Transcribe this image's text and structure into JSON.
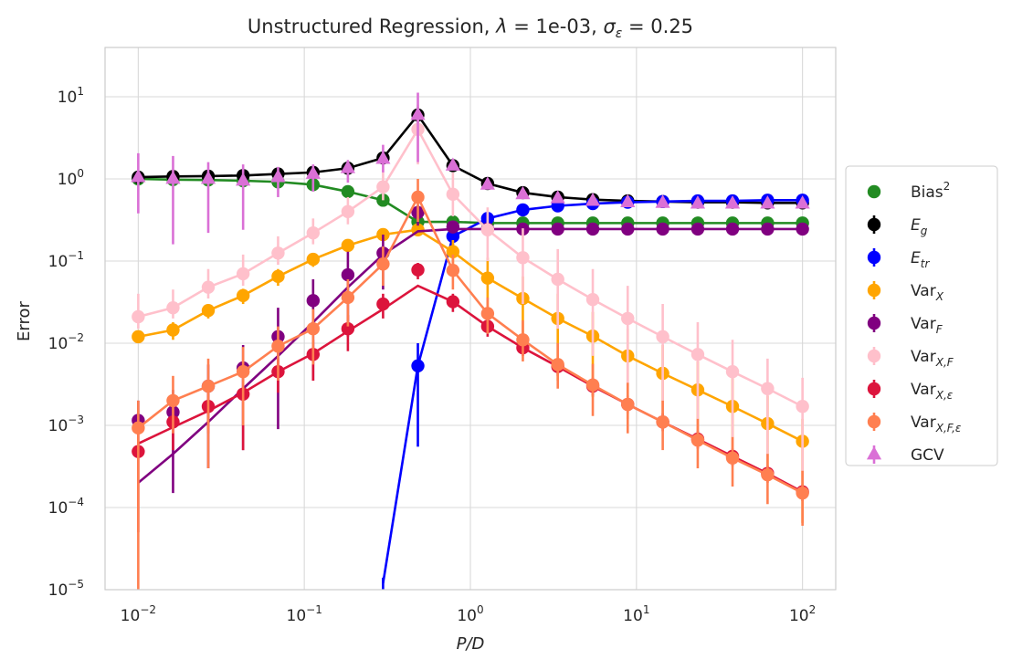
{
  "chart_data": {
    "type": "scatter",
    "title": "Unstructured Regression, λ = 1e-03, σ_ε = 0.25",
    "title_parts": {
      "prefix": "Unstructured Regression, ",
      "lambda_sym": "λ",
      "lambda_val": " = 1e-03, ",
      "sigma_sym": "σ",
      "sigma_sub": "ε",
      "sigma_val": " = 0.25"
    },
    "xlabel": "P/D",
    "ylabel": "Error",
    "xscale": "log",
    "yscale": "log",
    "xlim": [
      0.00631,
      158.5
    ],
    "ylim": [
      1e-05,
      39.8
    ],
    "grid": true,
    "legend_position": "right-outside",
    "x_ticks": [
      {
        "base": "10",
        "exp": "−2"
      },
      {
        "base": "10",
        "exp": "−1"
      },
      {
        "base": "10",
        "exp": "0"
      },
      {
        "base": "10",
        "exp": "1"
      },
      {
        "base": "10",
        "exp": "2"
      }
    ],
    "y_ticks": [
      {
        "base": "10",
        "exp": "−5"
      },
      {
        "base": "10",
        "exp": "−4"
      },
      {
        "base": "10",
        "exp": "−3"
      },
      {
        "base": "10",
        "exp": "−2"
      },
      {
        "base": "10",
        "exp": "−1"
      },
      {
        "base": "10",
        "exp": "0"
      },
      {
        "base": "10",
        "exp": "1"
      }
    ],
    "x": [
      0.01,
      0.0162,
      0.0264,
      0.0428,
      0.0695,
      0.113,
      0.183,
      0.298,
      0.483,
      0.785,
      1.27,
      2.07,
      3.36,
      5.46,
      8.86,
      14.4,
      23.4,
      37.9,
      61.6,
      100
    ],
    "series": [
      {
        "name": "Bias",
        "name_sup": "2",
        "name_sub": "",
        "color": "#228b22",
        "marker": "circle",
        "errorbar": false,
        "points": [
          1.0,
          0.98,
          0.97,
          0.95,
          0.92,
          0.85,
          0.7,
          0.55,
          0.3,
          0.3,
          0.29,
          0.29,
          0.29,
          0.29,
          0.29,
          0.29,
          0.29,
          0.29,
          0.29,
          0.29
        ],
        "curve": [
          1.0,
          0.98,
          0.97,
          0.95,
          0.92,
          0.85,
          0.7,
          0.55,
          0.3,
          0.3,
          0.29,
          0.29,
          0.29,
          0.29,
          0.29,
          0.29,
          0.29,
          0.29,
          0.29,
          0.29
        ],
        "err_lo": null,
        "err_hi": null
      },
      {
        "name": "E",
        "name_sup": "",
        "name_sub": "g",
        "color": "#000000",
        "marker": "circle",
        "errorbar": true,
        "points": [
          1.05,
          1.07,
          1.08,
          1.1,
          1.15,
          1.2,
          1.35,
          1.8,
          6.0,
          1.45,
          0.88,
          0.68,
          0.6,
          0.56,
          0.54,
          0.53,
          0.52,
          0.52,
          0.51,
          0.51
        ],
        "curve": [
          1.05,
          1.07,
          1.08,
          1.1,
          1.15,
          1.2,
          1.35,
          1.8,
          6.0,
          1.45,
          0.88,
          0.68,
          0.6,
          0.56,
          0.54,
          0.53,
          0.52,
          0.52,
          0.51,
          0.51
        ],
        "err_lo": [
          0.9,
          0.92,
          0.93,
          0.95,
          1.0,
          1.05,
          1.18,
          1.5,
          4.8,
          1.3,
          0.8,
          0.62,
          0.55,
          0.52,
          0.5,
          0.49,
          0.48,
          0.48,
          0.47,
          0.47
        ],
        "err_hi": [
          1.2,
          1.22,
          1.23,
          1.25,
          1.3,
          1.35,
          1.55,
          2.1,
          7.5,
          1.6,
          0.96,
          0.74,
          0.65,
          0.6,
          0.58,
          0.57,
          0.56,
          0.56,
          0.55,
          0.55
        ]
      },
      {
        "name": "E",
        "name_sup": "",
        "name_sub": "tr",
        "color": "#0000ff",
        "marker": "circle",
        "errorbar": true,
        "points": [
          null,
          null,
          null,
          null,
          null,
          null,
          null,
          null,
          0.0053,
          0.2,
          0.33,
          0.42,
          0.47,
          0.5,
          0.52,
          0.53,
          0.54,
          0.54,
          0.55,
          0.55
        ],
        "curve": [
          null,
          null,
          null,
          null,
          null,
          null,
          null,
          1.2e-05,
          0.0053,
          0.2,
          0.33,
          0.42,
          0.47,
          0.5,
          0.52,
          0.53,
          0.54,
          0.54,
          0.55,
          0.55
        ],
        "err_lo": [
          null,
          null,
          null,
          null,
          null,
          null,
          null,
          1e-05,
          0.00055,
          0.15,
          0.3,
          0.39,
          0.44,
          0.47,
          0.49,
          0.5,
          0.51,
          0.51,
          0.52,
          0.52
        ],
        "err_hi": [
          null,
          null,
          null,
          null,
          null,
          null,
          null,
          1.4e-05,
          0.01,
          0.26,
          0.36,
          0.45,
          0.5,
          0.53,
          0.55,
          0.56,
          0.57,
          0.57,
          0.58,
          0.58
        ]
      },
      {
        "name": "Var",
        "name_sup": "",
        "name_sub": "X",
        "color": "#ffa500",
        "marker": "circle",
        "errorbar": true,
        "points": [
          0.012,
          0.0145,
          0.025,
          0.038,
          0.065,
          0.105,
          0.155,
          0.21,
          0.24,
          0.13,
          0.062,
          0.035,
          0.02,
          0.0122,
          0.007,
          0.0043,
          0.0027,
          0.0017,
          0.00105,
          0.00064
        ],
        "curve": [
          0.012,
          0.0145,
          0.025,
          0.038,
          0.065,
          0.105,
          0.155,
          0.21,
          0.24,
          0.13,
          0.062,
          0.035,
          0.02,
          0.0122,
          0.007,
          0.0043,
          0.0027,
          0.0017,
          0.00105,
          0.00064
        ],
        "err_lo": [
          0.01,
          0.011,
          0.02,
          0.03,
          0.05,
          0.085,
          0.13,
          0.18,
          0.2,
          0.08,
          0.02,
          0.008,
          0.0035,
          0.0022,
          0.0012,
          0.0009,
          0.0007,
          0.0005,
          0.00028,
          6.5e-05
        ],
        "err_hi": [
          0.014,
          0.018,
          0.03,
          0.046,
          0.08,
          0.125,
          0.18,
          0.24,
          0.28,
          0.18,
          0.11,
          0.065,
          0.04,
          0.024,
          0.015,
          0.0095,
          0.006,
          0.0038,
          0.0023,
          0.0012
        ]
      },
      {
        "name": "Var",
        "name_sup": "",
        "name_sub": "F",
        "color": "#800080",
        "marker": "circle",
        "errorbar": true,
        "points": [
          0.00115,
          0.00145,
          0.003,
          0.005,
          0.012,
          0.033,
          0.068,
          0.125,
          0.39,
          0.26,
          0.245,
          0.245,
          0.245,
          0.245,
          0.245,
          0.245,
          0.245,
          0.245,
          0.245,
          0.245
        ],
        "curve": [
          0.0002,
          0.00045,
          0.0011,
          0.0028,
          0.007,
          0.018,
          0.048,
          0.12,
          0.23,
          0.245,
          0.245,
          0.245,
          0.245,
          0.245,
          0.245,
          0.245,
          0.245,
          0.245,
          0.245,
          0.245
        ],
        "err_lo": [
          0.0008,
          0.00015,
          0.0003,
          0.0005,
          0.0009,
          0.0035,
          0.012,
          0.045,
          0.27,
          0.22,
          0.21,
          0.21,
          0.21,
          0.21,
          0.21,
          0.21,
          0.21,
          0.21,
          0.21,
          0.21
        ],
        "err_hi": [
          0.002,
          0.0027,
          0.0055,
          0.0095,
          0.027,
          0.06,
          0.13,
          0.21,
          0.48,
          0.3,
          0.28,
          0.28,
          0.28,
          0.28,
          0.28,
          0.28,
          0.28,
          0.28,
          0.28,
          0.28
        ]
      },
      {
        "name": "Var",
        "name_sup": "",
        "name_sub": "X,F",
        "color": "#ffc0cb",
        "marker": "circle",
        "errorbar": true,
        "points": [
          0.021,
          0.027,
          0.048,
          0.07,
          0.125,
          0.22,
          0.4,
          0.8,
          4.0,
          0.65,
          0.24,
          0.11,
          0.06,
          0.034,
          0.02,
          0.012,
          0.0073,
          0.0045,
          0.0028,
          0.0017
        ],
        "curve": [
          0.021,
          0.027,
          0.048,
          0.07,
          0.125,
          0.22,
          0.4,
          0.8,
          4.0,
          0.65,
          0.24,
          0.11,
          0.06,
          0.034,
          0.02,
          0.012,
          0.0073,
          0.0045,
          0.0028,
          0.0017
        ],
        "err_lo": [
          0.015,
          0.02,
          0.035,
          0.05,
          0.09,
          0.16,
          0.28,
          0.55,
          1.5,
          0.35,
          0.1,
          0.03,
          0.015,
          0.007,
          0.003,
          0.001,
          0.0008,
          0.0004,
          0.00025,
          0.00015
        ],
        "err_hi": [
          0.04,
          0.045,
          0.08,
          0.12,
          0.2,
          0.33,
          0.6,
          1.3,
          8.0,
          1.2,
          0.45,
          0.25,
          0.14,
          0.08,
          0.05,
          0.03,
          0.018,
          0.011,
          0.0065,
          0.0038
        ]
      },
      {
        "name": "Var",
        "name_sup": "",
        "name_sub": "X,ε",
        "color": "#dc143c",
        "marker": "circle",
        "errorbar": true,
        "points": [
          0.00048,
          0.0011,
          0.0017,
          0.0024,
          0.0045,
          0.0073,
          0.015,
          0.03,
          0.078,
          0.032,
          0.016,
          0.0088,
          0.0052,
          0.003,
          0.0018,
          0.0011,
          0.00068,
          0.00042,
          0.00026,
          0.000155
        ],
        "curve": [
          0.0006,
          0.00095,
          0.0015,
          0.0025,
          0.0045,
          0.0075,
          0.014,
          0.026,
          0.05,
          0.032,
          0.016,
          0.0088,
          0.0052,
          0.003,
          0.0018,
          0.0011,
          0.00068,
          0.00042,
          0.00026,
          0.000155
        ],
        "err_lo": [
          5e-05,
          0.0005,
          0.0008,
          0.0005,
          0.0025,
          0.0035,
          0.008,
          0.02,
          0.06,
          0.024,
          0.012,
          0.007,
          0.004,
          0.0023,
          0.0014,
          0.00085,
          0.00052,
          0.00032,
          0.0002,
          0.00012
        ],
        "err_hi": [
          0.0009,
          0.0018,
          0.0025,
          0.0045,
          0.0065,
          0.011,
          0.022,
          0.04,
          0.095,
          0.04,
          0.02,
          0.011,
          0.0065,
          0.0038,
          0.0023,
          0.0014,
          0.00085,
          0.00052,
          0.00032,
          0.00019
        ]
      },
      {
        "name": "Var",
        "name_sup": "",
        "name_sub": "X,F,ε",
        "color": "#ff7f50",
        "marker": "circle",
        "errorbar": true,
        "points": [
          0.00093,
          0.002,
          0.003,
          0.0045,
          0.0092,
          0.015,
          0.036,
          0.092,
          0.6,
          0.077,
          0.023,
          0.011,
          0.0055,
          0.0031,
          0.0018,
          0.0011,
          0.00066,
          0.0004,
          0.00025,
          0.00015
        ],
        "curve": [
          0.00093,
          0.002,
          0.003,
          0.0045,
          0.0092,
          0.015,
          0.036,
          0.092,
          0.6,
          0.077,
          0.023,
          0.011,
          0.0055,
          0.0031,
          0.0018,
          0.0011,
          0.00066,
          0.0004,
          0.00025,
          0.00015
        ],
        "err_lo": [
          1e-05,
          0.0008,
          0.0003,
          0.001,
          0.0035,
          0.0055,
          0.016,
          0.05,
          0.3,
          0.045,
          0.013,
          0.006,
          0.0028,
          0.0013,
          0.0008,
          0.0005,
          0.0003,
          0.00018,
          0.00011,
          6e-05
        ],
        "err_hi": [
          0.002,
          0.004,
          0.0065,
          0.009,
          0.016,
          0.026,
          0.06,
          0.15,
          1.0,
          0.12,
          0.036,
          0.019,
          0.01,
          0.0056,
          0.0033,
          0.002,
          0.0012,
          0.00072,
          0.00045,
          0.00028
        ]
      },
      {
        "name": "GCV",
        "name_sup": "",
        "name_sub": "",
        "color": "#da70d6",
        "marker": "triangle",
        "errorbar": true,
        "points": [
          1.05,
          1.0,
          1.0,
          0.95,
          1.05,
          1.15,
          1.35,
          1.75,
          6.0,
          1.45,
          0.85,
          0.65,
          0.58,
          0.54,
          0.52,
          0.51,
          0.5,
          0.5,
          0.5,
          0.5
        ],
        "curve": null,
        "err_lo": [
          0.38,
          0.16,
          0.22,
          0.24,
          0.6,
          0.7,
          0.9,
          1.2,
          1.6,
          1.3,
          0.8,
          0.6,
          0.55,
          0.51,
          0.5,
          0.49,
          0.48,
          0.48,
          0.47,
          0.47
        ],
        "err_hi": [
          2.05,
          1.9,
          1.6,
          1.5,
          1.4,
          1.5,
          1.7,
          2.6,
          11.2,
          1.6,
          0.92,
          0.72,
          0.62,
          0.58,
          0.56,
          0.55,
          0.54,
          0.54,
          0.53,
          0.53
        ]
      }
    ]
  }
}
